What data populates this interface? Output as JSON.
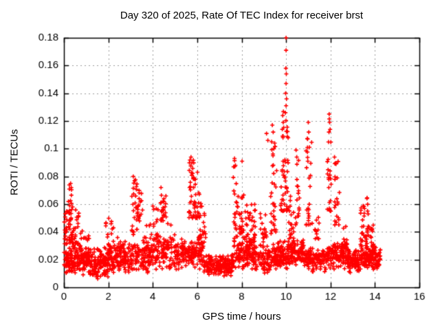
{
  "chart_data": {
    "type": "scatter",
    "title": "Day 320 of 2025, Rate Of TEC Index for receiver brst",
    "xlabel": "GPS time / hours",
    "ylabel": "ROTI / TECUs",
    "xlim": [
      0,
      16
    ],
    "ylim": [
      0,
      0.18
    ],
    "grid": true,
    "legend": "none",
    "marker": "plus",
    "marker_color": "#ff0000",
    "grid_color": "#989898",
    "border_color": "#000000",
    "seed": 1337,
    "x_ticks": [
      {
        "label": "0",
        "v": 0
      },
      {
        "label": "2",
        "v": 2
      },
      {
        "label": "4",
        "v": 4
      },
      {
        "label": "6",
        "v": 6
      },
      {
        "label": "8",
        "v": 8
      },
      {
        "label": "10",
        "v": 10
      },
      {
        "label": "12",
        "v": 12
      },
      {
        "label": "14",
        "v": 14
      },
      {
        "label": "16",
        "v": 16
      }
    ],
    "y_ticks": [
      {
        "label": "0",
        "v": 0
      },
      {
        "label": "0.02",
        "v": 0.02
      },
      {
        "label": "0.04",
        "v": 0.04
      },
      {
        "label": "0.06",
        "v": 0.06
      },
      {
        "label": "0.08",
        "v": 0.08
      },
      {
        "label": "0.1",
        "v": 0.1
      },
      {
        "label": "0.12",
        "v": 0.12
      },
      {
        "label": "0.14",
        "v": 0.14
      },
      {
        "label": "0.16",
        "v": 0.16
      },
      {
        "label": "0.18",
        "v": 0.18
      }
    ],
    "points": [
      [
        10.0,
        0.18
      ],
      [
        10.0,
        0.171
      ],
      [
        9.99,
        0.158
      ],
      [
        10.01,
        0.154
      ],
      [
        10.0,
        0.147
      ],
      [
        9.98,
        0.14
      ],
      [
        10.02,
        0.136
      ],
      [
        10.0,
        0.131
      ],
      [
        9.97,
        0.126
      ],
      [
        9.85,
        0.124
      ],
      [
        9.87,
        0.119
      ],
      [
        9.83,
        0.114
      ],
      [
        9.86,
        0.108
      ],
      [
        9.38,
        0.117
      ],
      [
        9.42,
        0.112
      ],
      [
        9.35,
        0.105
      ],
      [
        9.45,
        0.1
      ],
      [
        9.12,
        0.111
      ],
      [
        9.18,
        0.106
      ],
      [
        11.0,
        0.119
      ],
      [
        11.02,
        0.112
      ],
      [
        10.97,
        0.107
      ],
      [
        11.05,
        0.101
      ],
      [
        11.94,
        0.125
      ],
      [
        11.96,
        0.119
      ],
      [
        11.93,
        0.112
      ],
      [
        10.45,
        0.099
      ],
      [
        10.48,
        0.094
      ],
      [
        12.18,
        0.094
      ],
      [
        12.25,
        0.089
      ],
      [
        5.72,
        0.094
      ],
      [
        5.76,
        0.09
      ],
      [
        7.68,
        0.093
      ],
      [
        7.72,
        0.088
      ],
      [
        8.02,
        0.091
      ],
      [
        3.12,
        0.08
      ],
      [
        3.18,
        0.077
      ],
      [
        0.3,
        0.075
      ],
      [
        0.33,
        0.072
      ],
      [
        4.37,
        0.072
      ]
    ],
    "clusters": [
      {
        "x0": 0.0,
        "x1": 1.0,
        "y0": 0.008,
        "y1": 0.032,
        "count": 150,
        "bias": "mid"
      },
      {
        "x0": 1.0,
        "x1": 2.0,
        "y0": 0.006,
        "y1": 0.03,
        "count": 150,
        "bias": "mid"
      },
      {
        "x0": 2.0,
        "x1": 3.0,
        "y0": 0.008,
        "y1": 0.034,
        "count": 130,
        "bias": "mid"
      },
      {
        "x0": 3.0,
        "x1": 4.0,
        "y0": 0.01,
        "y1": 0.034,
        "count": 110,
        "bias": "mid"
      },
      {
        "x0": 4.0,
        "x1": 5.5,
        "y0": 0.012,
        "y1": 0.038,
        "count": 150,
        "bias": "mid"
      },
      {
        "x0": 5.5,
        "x1": 6.3,
        "y0": 0.012,
        "y1": 0.035,
        "count": 80,
        "bias": "mid"
      },
      {
        "x0": 6.3,
        "x1": 7.6,
        "y0": 0.008,
        "y1": 0.024,
        "count": 170,
        "bias": "mid"
      },
      {
        "x0": 7.6,
        "x1": 8.6,
        "y0": 0.012,
        "y1": 0.035,
        "count": 120,
        "bias": "mid"
      },
      {
        "x0": 8.6,
        "x1": 9.6,
        "y0": 0.01,
        "y1": 0.032,
        "count": 120,
        "bias": "mid"
      },
      {
        "x0": 9.6,
        "x1": 10.8,
        "y0": 0.012,
        "y1": 0.035,
        "count": 170,
        "bias": "mid"
      },
      {
        "x0": 10.8,
        "x1": 11.8,
        "y0": 0.01,
        "y1": 0.03,
        "count": 130,
        "bias": "mid"
      },
      {
        "x0": 11.8,
        "x1": 12.8,
        "y0": 0.012,
        "y1": 0.034,
        "count": 130,
        "bias": "mid"
      },
      {
        "x0": 12.8,
        "x1": 13.4,
        "y0": 0.01,
        "y1": 0.028,
        "count": 80,
        "bias": "mid"
      },
      {
        "x0": 13.4,
        "x1": 14.25,
        "y0": 0.012,
        "y1": 0.03,
        "count": 120,
        "bias": "mid"
      },
      {
        "x0": 0.02,
        "x1": 0.15,
        "y0": 0.03,
        "y1": 0.055,
        "count": 18,
        "bias": "uniform"
      },
      {
        "x0": 0.2,
        "x1": 0.45,
        "y0": 0.032,
        "y1": 0.075,
        "count": 40,
        "bias": "low"
      },
      {
        "x0": 0.45,
        "x1": 0.75,
        "y0": 0.028,
        "y1": 0.056,
        "count": 22,
        "bias": "low"
      },
      {
        "x0": 0.75,
        "x1": 1.15,
        "y0": 0.022,
        "y1": 0.042,
        "count": 18,
        "bias": "low"
      },
      {
        "x0": 1.85,
        "x1": 2.25,
        "y0": 0.028,
        "y1": 0.05,
        "count": 16,
        "bias": "low"
      },
      {
        "x0": 2.4,
        "x1": 2.65,
        "y0": 0.022,
        "y1": 0.038,
        "count": 10,
        "bias": "low"
      },
      {
        "x0": 3.05,
        "x1": 3.3,
        "y0": 0.038,
        "y1": 0.079,
        "count": 26,
        "bias": "low"
      },
      {
        "x0": 3.3,
        "x1": 3.6,
        "y0": 0.045,
        "y1": 0.07,
        "count": 18,
        "bias": "uniform"
      },
      {
        "x0": 3.6,
        "x1": 3.95,
        "y0": 0.028,
        "y1": 0.05,
        "count": 14,
        "bias": "low"
      },
      {
        "x0": 4.0,
        "x1": 4.25,
        "y0": 0.032,
        "y1": 0.06,
        "count": 16,
        "bias": "low"
      },
      {
        "x0": 4.35,
        "x1": 4.6,
        "y0": 0.048,
        "y1": 0.068,
        "count": 26,
        "bias": "uniform"
      },
      {
        "x0": 4.65,
        "x1": 5.05,
        "y0": 0.028,
        "y1": 0.046,
        "count": 16,
        "bias": "low"
      },
      {
        "x0": 5.6,
        "x1": 5.85,
        "y0": 0.05,
        "y1": 0.093,
        "count": 30,
        "bias": "low"
      },
      {
        "x0": 5.85,
        "x1": 6.1,
        "y0": 0.05,
        "y1": 0.085,
        "count": 26,
        "bias": "low"
      },
      {
        "x0": 6.05,
        "x1": 6.4,
        "y0": 0.032,
        "y1": 0.065,
        "count": 30,
        "bias": "low"
      },
      {
        "x0": 7.62,
        "x1": 7.8,
        "y0": 0.035,
        "y1": 0.092,
        "count": 20,
        "bias": "low"
      },
      {
        "x0": 7.8,
        "x1": 8.15,
        "y0": 0.03,
        "y1": 0.068,
        "count": 32,
        "bias": "low"
      },
      {
        "x0": 8.15,
        "x1": 8.65,
        "y0": 0.032,
        "y1": 0.06,
        "count": 36,
        "bias": "low"
      },
      {
        "x0": 8.8,
        "x1": 9.15,
        "y0": 0.032,
        "y1": 0.055,
        "count": 16,
        "bias": "low"
      },
      {
        "x0": 9.3,
        "x1": 9.6,
        "y0": 0.038,
        "y1": 0.105,
        "count": 32,
        "bias": "low"
      },
      {
        "x0": 9.75,
        "x1": 10.1,
        "y0": 0.055,
        "y1": 0.132,
        "count": 48,
        "bias": "low"
      },
      {
        "x0": 10.1,
        "x1": 10.35,
        "y0": 0.035,
        "y1": 0.075,
        "count": 20,
        "bias": "low"
      },
      {
        "x0": 10.4,
        "x1": 10.6,
        "y0": 0.045,
        "y1": 0.095,
        "count": 18,
        "bias": "low"
      },
      {
        "x0": 10.9,
        "x1": 11.2,
        "y0": 0.045,
        "y1": 0.115,
        "count": 26,
        "bias": "low"
      },
      {
        "x0": 11.3,
        "x1": 11.5,
        "y0": 0.035,
        "y1": 0.065,
        "count": 12,
        "bias": "low"
      },
      {
        "x0": 11.85,
        "x1": 12.05,
        "y0": 0.055,
        "y1": 0.122,
        "count": 22,
        "bias": "low"
      },
      {
        "x0": 12.15,
        "x1": 12.4,
        "y0": 0.045,
        "y1": 0.092,
        "count": 20,
        "bias": "low"
      },
      {
        "x0": 12.5,
        "x1": 12.75,
        "y0": 0.028,
        "y1": 0.048,
        "count": 12,
        "bias": "low"
      },
      {
        "x0": 13.35,
        "x1": 13.72,
        "y0": 0.028,
        "y1": 0.066,
        "count": 42,
        "bias": "low"
      },
      {
        "x0": 13.72,
        "x1": 13.95,
        "y0": 0.022,
        "y1": 0.045,
        "count": 22,
        "bias": "low"
      }
    ]
  }
}
